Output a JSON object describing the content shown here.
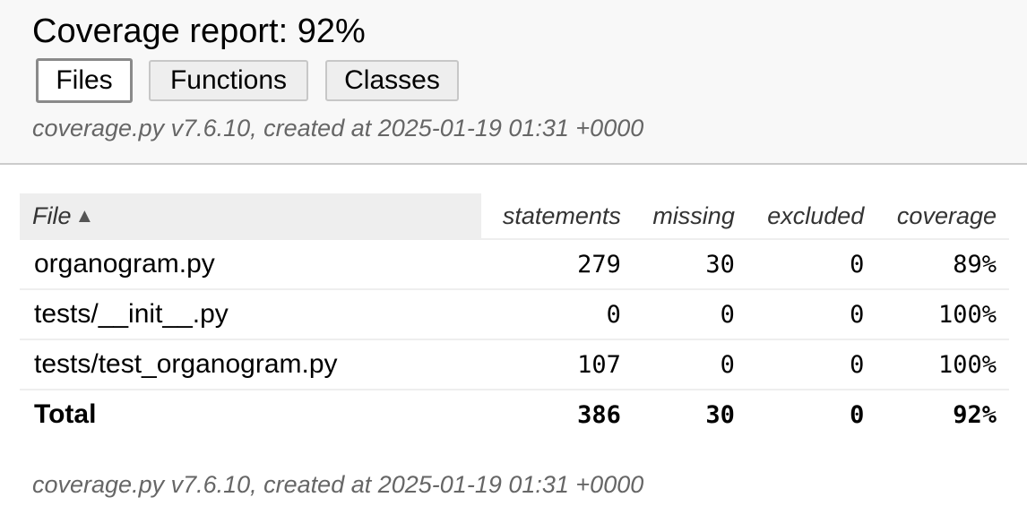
{
  "header": {
    "title": "Coverage report: 92%",
    "tabs": [
      {
        "label": "Files",
        "current": true
      },
      {
        "label": "Functions",
        "current": false
      },
      {
        "label": "Classes",
        "current": false
      }
    ],
    "meta": "coverage.py v7.6.10, created at 2025-01-19 01:31 +0000"
  },
  "table": {
    "columns": {
      "file": "File",
      "sort_indicator": "▲",
      "statements": "statements",
      "missing": "missing",
      "excluded": "excluded",
      "coverage": "coverage"
    },
    "rows": [
      {
        "file": "organogram.py",
        "statements": "279",
        "missing": "30",
        "excluded": "0",
        "coverage": "89%"
      },
      {
        "file": "tests/__init__.py",
        "statements": "0",
        "missing": "0",
        "excluded": "0",
        "coverage": "100%"
      },
      {
        "file": "tests/test_organogram.py",
        "statements": "107",
        "missing": "0",
        "excluded": "0",
        "coverage": "100%"
      }
    ],
    "total": {
      "label": "Total",
      "statements": "386",
      "missing": "30",
      "excluded": "0",
      "coverage": "92%"
    }
  },
  "footer": {
    "meta": "coverage.py v7.6.10, created at 2025-01-19 01:31 +0000"
  }
}
